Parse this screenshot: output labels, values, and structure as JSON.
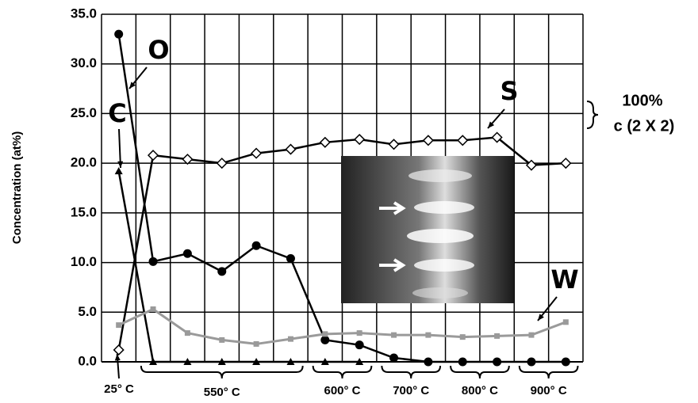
{
  "chart_data": {
    "type": "line",
    "y_label": "Concentration (at%)",
    "categories": [
      null,
      null,
      null,
      null,
      null,
      null,
      null,
      null,
      null,
      null,
      null,
      null,
      null,
      null
    ],
    "ylim": [
      0,
      35
    ],
    "yticks": [
      {
        "value": 0,
        "label": "0.0"
      },
      {
        "value": 5,
        "label": "5.0"
      },
      {
        "value": 10,
        "label": "10.0"
      },
      {
        "value": 15,
        "label": "15.0"
      },
      {
        "value": 20,
        "label": "20.0"
      },
      {
        "value": 25,
        "label": "25.0"
      },
      {
        "value": 30,
        "label": "30.0"
      },
      {
        "value": 35,
        "label": "35.0"
      }
    ],
    "grid": true,
    "series": [
      {
        "name": "O",
        "color": "#000000",
        "marker": "circle",
        "values": [
          33.0,
          10.1,
          10.9,
          9.1,
          11.7,
          10.4,
          2.2,
          1.7,
          0.4,
          0,
          0,
          0,
          0,
          0
        ]
      },
      {
        "name": "C",
        "color": "#000000",
        "marker": "triangle",
        "values": [
          19.2,
          0,
          0,
          0,
          0,
          0,
          0,
          0,
          null,
          null,
          null,
          null,
          null,
          null
        ]
      },
      {
        "name": "S",
        "color": "#000000",
        "marker": "diamond",
        "values": [
          1.2,
          20.8,
          20.4,
          20.0,
          21.0,
          21.4,
          22.1,
          22.4,
          21.9,
          22.3,
          22.3,
          22.6,
          19.8,
          20.0
        ]
      },
      {
        "name": "W",
        "color": "#9a9a9a",
        "marker": "square",
        "values": [
          3.7,
          5.3,
          2.9,
          2.2,
          1.8,
          2.3,
          2.8,
          2.9,
          2.7,
          2.7,
          2.5,
          2.6,
          2.7,
          4.0
        ]
      }
    ],
    "annotations": [
      "100%",
      "c (2 X 2)"
    ],
    "temperature_groups": [
      "25° C",
      "550° C",
      "600° C",
      "700° C",
      "800° C",
      "900° C"
    ]
  }
}
